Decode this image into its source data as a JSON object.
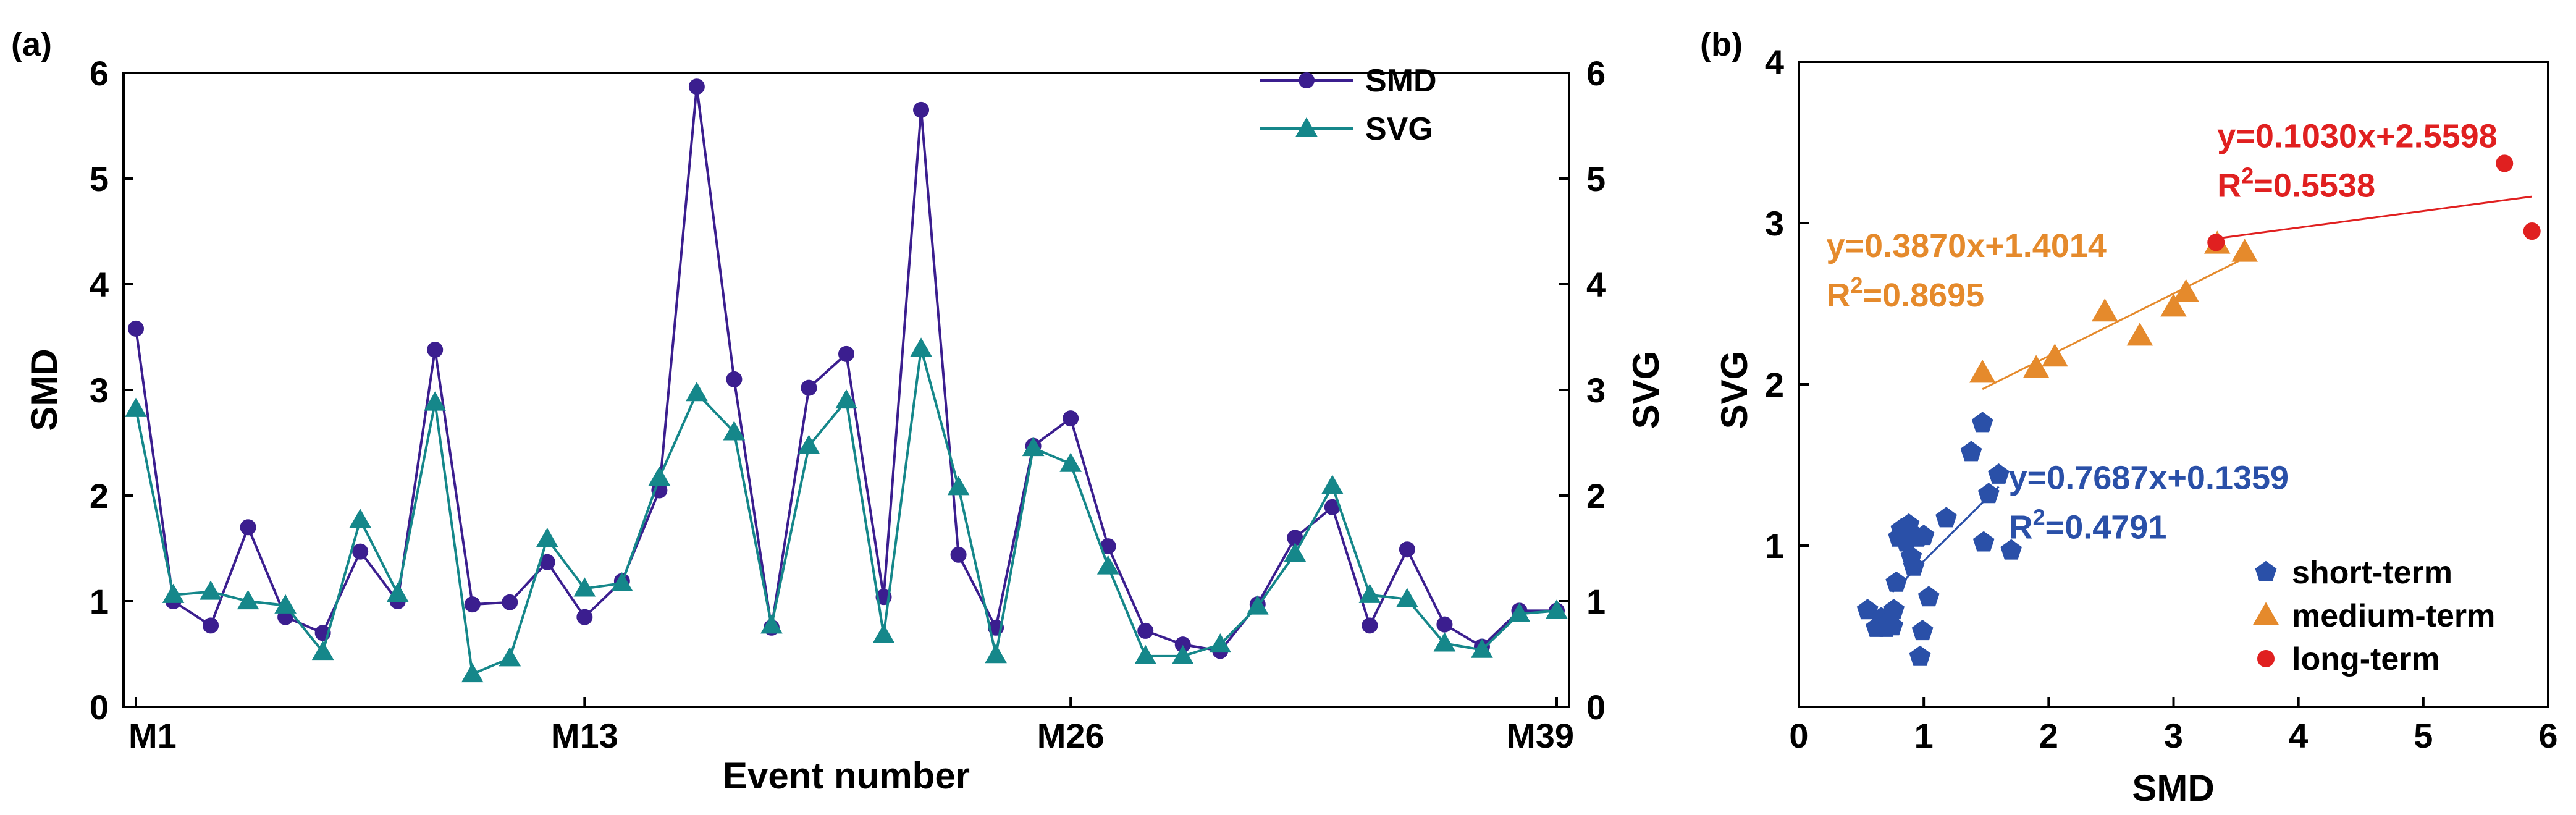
{
  "chart_data": [
    {
      "panel": "(a)",
      "type": "line",
      "xlabel": "Event number",
      "ylabel": "SMD",
      "ylabel_right": "SVG",
      "ylim": [
        0,
        6
      ],
      "y_ticks": [
        0,
        1,
        2,
        3,
        4,
        5,
        6
      ],
      "x_range": [
        1,
        39
      ],
      "x_ticks": [
        {
          "x": 1,
          "label": "M1"
        },
        {
          "x": 13,
          "label": "M13"
        },
        {
          "x": 26,
          "label": "M26"
        },
        {
          "x": 39,
          "label": "M39"
        }
      ],
      "legend_position": "top-right",
      "x": [
        1,
        2,
        3,
        4,
        5,
        6,
        7,
        8,
        9,
        10,
        11,
        12,
        13,
        14,
        15,
        16,
        17,
        18,
        19,
        20,
        21,
        22,
        23,
        24,
        25,
        26,
        27,
        28,
        29,
        30,
        31,
        32,
        33,
        34,
        35,
        36,
        37,
        38,
        39
      ],
      "series": [
        {
          "name": "SMD",
          "color": "#3b1e8f",
          "marker": "circle",
          "values": [
            3.58,
            1.0,
            0.77,
            1.7,
            0.85,
            0.7,
            1.47,
            1.0,
            3.38,
            0.97,
            0.99,
            1.37,
            0.85,
            1.19,
            2.05,
            5.87,
            3.1,
            0.75,
            3.02,
            3.34,
            1.04,
            5.65,
            1.44,
            0.75,
            2.47,
            2.73,
            1.52,
            0.72,
            0.59,
            0.53,
            0.97,
            1.6,
            1.89,
            0.77,
            1.49,
            0.78,
            0.57,
            0.91,
            0.91
          ]
        },
        {
          "name": "SVG",
          "color": "#15878a",
          "marker": "triangle",
          "values": [
            2.82,
            1.06,
            1.09,
            1.0,
            0.96,
            0.52,
            1.77,
            1.07,
            2.88,
            0.31,
            0.46,
            1.59,
            1.12,
            1.17,
            2.17,
            2.97,
            2.6,
            0.77,
            2.47,
            2.9,
            0.68,
            3.39,
            2.08,
            0.49,
            2.45,
            2.3,
            1.33,
            0.48,
            0.48,
            0.59,
            0.95,
            1.45,
            2.09,
            1.06,
            1.02,
            0.6,
            0.54,
            0.88,
            0.91
          ]
        }
      ]
    },
    {
      "panel": "(b)",
      "type": "scatter",
      "xlabel": "SMD",
      "ylabel": "SVG",
      "xlim": [
        0,
        6
      ],
      "ylim": [
        0,
        4
      ],
      "x_ticks": [
        0,
        1,
        2,
        3,
        4,
        5,
        6
      ],
      "y_ticks": [
        1,
        2,
        3,
        4
      ],
      "legend_position": "bottom-right",
      "series": [
        {
          "name": "short-term",
          "color": "#2a50a8",
          "marker": "pentagon",
          "points": [
            [
              0.55,
              0.6
            ],
            [
              0.62,
              0.49
            ],
            [
              0.66,
              0.55
            ],
            [
              0.7,
              0.49
            ],
            [
              0.72,
              0.53
            ],
            [
              0.75,
              0.5
            ],
            [
              0.76,
              0.6
            ],
            [
              0.78,
              0.77
            ],
            [
              0.8,
              1.05
            ],
            [
              0.82,
              1.1
            ],
            [
              0.86,
              1.02
            ],
            [
              0.88,
              1.13
            ],
            [
              0.9,
              0.93
            ],
            [
              0.92,
              0.87
            ],
            [
              0.95,
              1.05
            ],
            [
              0.97,
              0.31
            ],
            [
              0.99,
              0.47
            ],
            [
              1.0,
              1.06
            ],
            [
              1.04,
              0.68
            ],
            [
              1.18,
              1.17
            ],
            [
              1.38,
              1.58
            ],
            [
              1.47,
              1.76
            ],
            [
              1.48,
              1.02
            ],
            [
              1.52,
              1.32
            ],
            [
              1.6,
              1.44
            ],
            [
              1.7,
              0.97
            ]
          ],
          "fit_equation": "y=0.7687x+0.1359",
          "fit_r2_label": "R",
          "fit_r2_value": "=0.4791",
          "fit_slope": 0.7687,
          "fit_intercept": 0.1359,
          "fit_x_range": [
            0.75,
            1.6
          ]
        },
        {
          "name": "medium-term",
          "color": "#e58a2c",
          "marker": "triangle",
          "points": [
            [
              1.47,
              2.07
            ],
            [
              1.9,
              2.1
            ],
            [
              2.05,
              2.17
            ],
            [
              2.45,
              2.45
            ],
            [
              2.73,
              2.3
            ],
            [
              3.0,
              2.48
            ],
            [
              3.1,
              2.57
            ],
            [
              3.35,
              2.87
            ],
            [
              3.57,
              2.82
            ]
          ],
          "fit_equation": "y=0.3870x+1.4014",
          "fit_r2_label": "R",
          "fit_r2_value": "=0.8695",
          "fit_slope": 0.387,
          "fit_intercept": 1.4014,
          "fit_x_range": [
            1.47,
            3.57
          ]
        },
        {
          "name": "long-term",
          "color": "#e02020",
          "marker": "circle",
          "points": [
            [
              3.34,
              2.88
            ],
            [
              5.65,
              3.37
            ],
            [
              5.87,
              2.95
            ]
          ],
          "fit_equation": "y=0.1030x+2.5598",
          "fit_r2_label": "R",
          "fit_r2_value": "=0.5538",
          "fit_slope": 0.103,
          "fit_intercept": 2.5598,
          "fit_x_range": [
            3.34,
            5.87
          ]
        }
      ]
    }
  ]
}
